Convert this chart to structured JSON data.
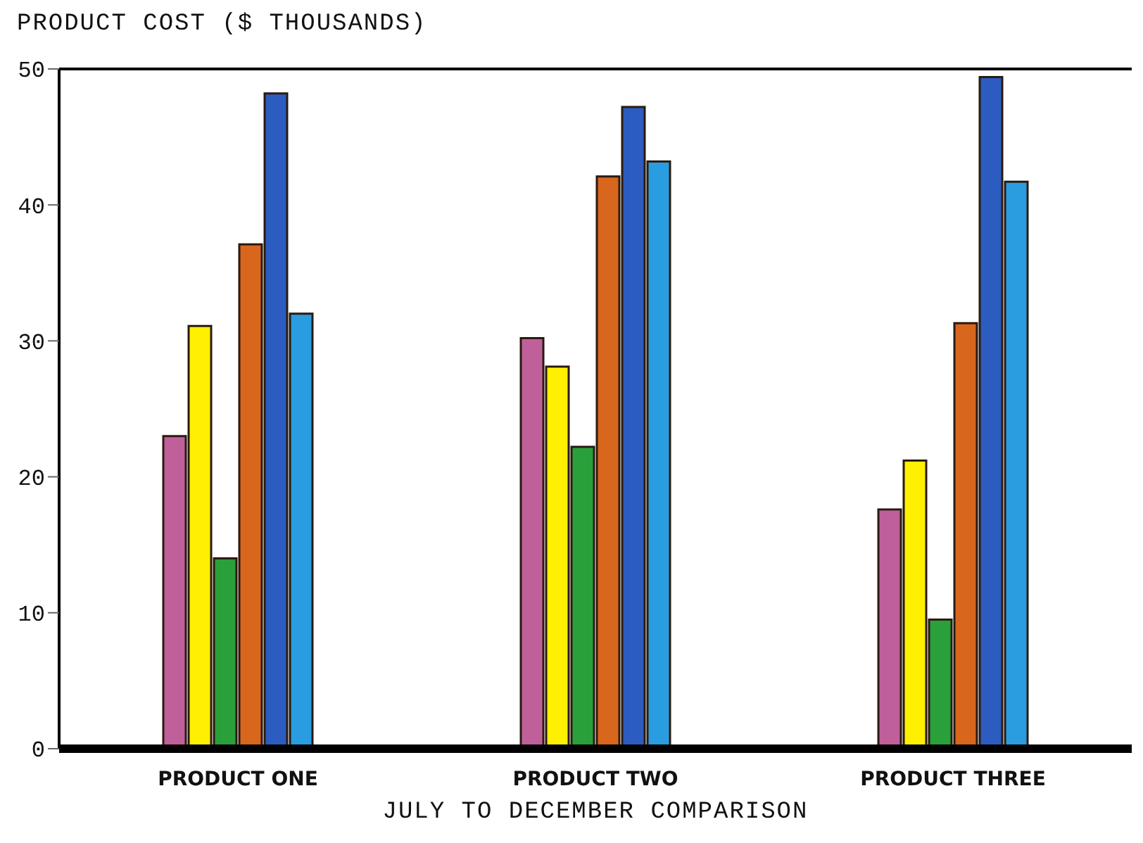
{
  "chart_data": {
    "type": "bar",
    "ylabel": "PRODUCT COST ($ THOUSANDS)",
    "xlabel": "JULY TO DECEMBER COMPARISON",
    "categories": [
      "PRODUCT ONE",
      "PRODUCT TWO",
      "PRODUCT THREE"
    ],
    "series": [
      {
        "color": "#c0609a",
        "values": [
          23.0,
          30.2,
          17.6
        ]
      },
      {
        "color": "#ffef00",
        "values": [
          31.1,
          28.1,
          21.2
        ]
      },
      {
        "color": "#2aa03a",
        "values": [
          14.0,
          22.2,
          9.5
        ]
      },
      {
        "color": "#d8661c",
        "values": [
          37.1,
          42.1,
          31.3
        ]
      },
      {
        "color": "#2c5cc0",
        "values": [
          48.2,
          47.2,
          49.4
        ]
      },
      {
        "color": "#2a9de0",
        "values": [
          32.0,
          43.2,
          41.7
        ]
      }
    ],
    "ylim": [
      0,
      50
    ],
    "yticks": [
      0,
      10,
      20,
      30,
      40,
      50
    ],
    "grid": false,
    "legend": false
  }
}
